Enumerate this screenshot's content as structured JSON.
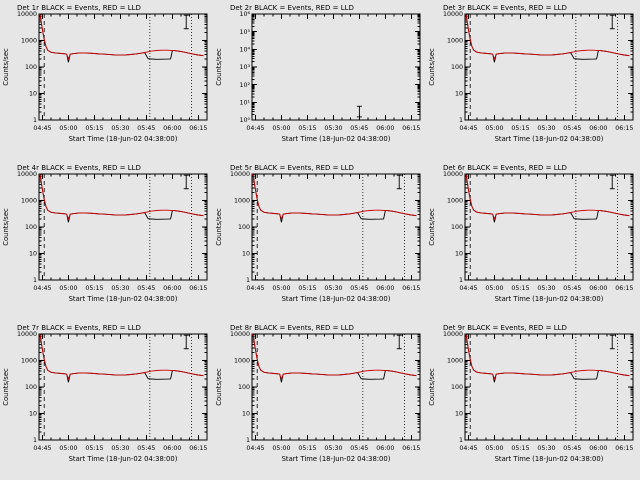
{
  "figure": {
    "background": "#e6e6e6"
  },
  "chart_data": {
    "type": "line",
    "layout": {
      "rows": 3,
      "cols": 3
    },
    "xlabel": "Start Time (18-Jun-02 04:38:00)",
    "ylabel": "Counts/sec",
    "log_y": true,
    "grid": false,
    "x_range": [
      5,
      102
    ],
    "x_ticks": [
      {
        "v": 7,
        "label": "04:45"
      },
      {
        "v": 22,
        "label": "05:00"
      },
      {
        "v": 37,
        "label": "05:15"
      },
      {
        "v": 52,
        "label": "05:30"
      },
      {
        "v": 67,
        "label": "05:45"
      },
      {
        "v": 82,
        "label": "06:00"
      },
      {
        "v": 97,
        "label": "06:15"
      }
    ],
    "legend": {
      "black": "Events",
      "red": "LLD"
    },
    "colors": {
      "black": "#000000",
      "red": "#cc0000"
    },
    "vlines": [
      {
        "x": 8,
        "style": "dashed"
      },
      {
        "x": 69,
        "style": "dotted"
      },
      {
        "x": 93,
        "style": "dotted"
      }
    ],
    "base_series": {
      "x": [
        5,
        5.5,
        6,
        6.5,
        7,
        8,
        9,
        10,
        12,
        15,
        18,
        20,
        21,
        22,
        23,
        25,
        28,
        31,
        34,
        37,
        40,
        43,
        46,
        49,
        52,
        55,
        58,
        61,
        64,
        66,
        68,
        70,
        73,
        76,
        79,
        81,
        82,
        83,
        85,
        88,
        91,
        94,
        97,
        100
      ],
      "red": [
        10000,
        9500,
        7000,
        4000,
        2500,
        1100,
        600,
        430,
        360,
        335,
        322,
        315,
        305,
        200,
        305,
        320,
        335,
        340,
        333,
        323,
        313,
        303,
        293,
        286,
        282,
        287,
        297,
        312,
        332,
        352,
        375,
        398,
        420,
        432,
        430,
        424,
        420,
        416,
        400,
        373,
        340,
        306,
        283,
        266
      ],
      "black": [
        10000,
        9500,
        7000,
        4000,
        2500,
        1100,
        600,
        430,
        360,
        335,
        322,
        315,
        305,
        150,
        305,
        320,
        335,
        340,
        333,
        323,
        313,
        303,
        293,
        286,
        282,
        287,
        297,
        312,
        332,
        352,
        205,
        200,
        196,
        197,
        199,
        203,
        420,
        416,
        400,
        373,
        340,
        306,
        283,
        266
      ]
    },
    "panels": [
      {
        "det": "1r",
        "title": "Det 1r BLACK = Events, RED = LLD",
        "empty": false,
        "vlines": true,
        "y_range": [
          1,
          10000
        ],
        "y_decade_labels": [
          "1",
          "10",
          "100",
          "1000",
          "10000"
        ],
        "errorbar": {
          "x": 90,
          "y": 5000,
          "factor": 1.8
        }
      },
      {
        "det": "2r",
        "title": "Det 2r BLACK = Events, RED = LLD",
        "empty": true,
        "vlines": false,
        "y_range": [
          1,
          1000000
        ],
        "y_decade_labels": [
          "10⁰",
          "10¹",
          "10²",
          "10³",
          "10⁴",
          "10⁵",
          "10⁶"
        ],
        "errorbar": {
          "x": 67,
          "y": 3,
          "factor": 2
        }
      },
      {
        "det": "3r",
        "title": "Det 3r BLACK = Events, RED = LLD",
        "empty": false,
        "vlines": true,
        "y_range": [
          1,
          10000
        ],
        "y_decade_labels": [
          "1",
          "10",
          "100",
          "1000",
          "10000"
        ],
        "errorbar": {
          "x": 90,
          "y": 5000,
          "factor": 1.8
        }
      },
      {
        "det": "4r",
        "title": "Det 4r BLACK = Events, RED = LLD",
        "empty": false,
        "vlines": true,
        "y_range": [
          1,
          10000
        ],
        "y_decade_labels": [
          "1",
          "10",
          "100",
          "1000",
          "10000"
        ],
        "errorbar": {
          "x": 90,
          "y": 5000,
          "factor": 1.8
        }
      },
      {
        "det": "5r",
        "title": "Det 5r BLACK = Events, RED = LLD",
        "empty": false,
        "vlines": true,
        "y_range": [
          1,
          10000
        ],
        "y_decade_labels": [
          "1",
          "10",
          "100",
          "1000",
          "10000"
        ],
        "errorbar": {
          "x": 90,
          "y": 5000,
          "factor": 1.8
        }
      },
      {
        "det": "6r",
        "title": "Det 6r BLACK = Events, RED = LLD",
        "empty": false,
        "vlines": true,
        "y_range": [
          1,
          10000
        ],
        "y_decade_labels": [
          "1",
          "10",
          "100",
          "1000",
          "10000"
        ],
        "errorbar": {
          "x": 90,
          "y": 5000,
          "factor": 1.8
        }
      },
      {
        "det": "7r",
        "title": "Det 7r BLACK = Events, RED = LLD",
        "empty": false,
        "vlines": true,
        "y_range": [
          1,
          10000
        ],
        "y_decade_labels": [
          "1",
          "10",
          "100",
          "1000",
          "10000"
        ],
        "errorbar": {
          "x": 90,
          "y": 5000,
          "factor": 1.8
        }
      },
      {
        "det": "8r",
        "title": "Det 8r BLACK = Events, RED = LLD",
        "empty": false,
        "vlines": true,
        "y_range": [
          1,
          10000
        ],
        "y_decade_labels": [
          "1",
          "10",
          "100",
          "1000",
          "10000"
        ],
        "errorbar": {
          "x": 90,
          "y": 5000,
          "factor": 1.8
        }
      },
      {
        "det": "9r",
        "title": "Det 9r BLACK = Events, RED = LLD",
        "empty": false,
        "vlines": true,
        "y_range": [
          1,
          10000
        ],
        "y_decade_labels": [
          "1",
          "10",
          "100",
          "1000",
          "10000"
        ],
        "errorbar": {
          "x": 90,
          "y": 5000,
          "factor": 1.8
        }
      }
    ]
  }
}
